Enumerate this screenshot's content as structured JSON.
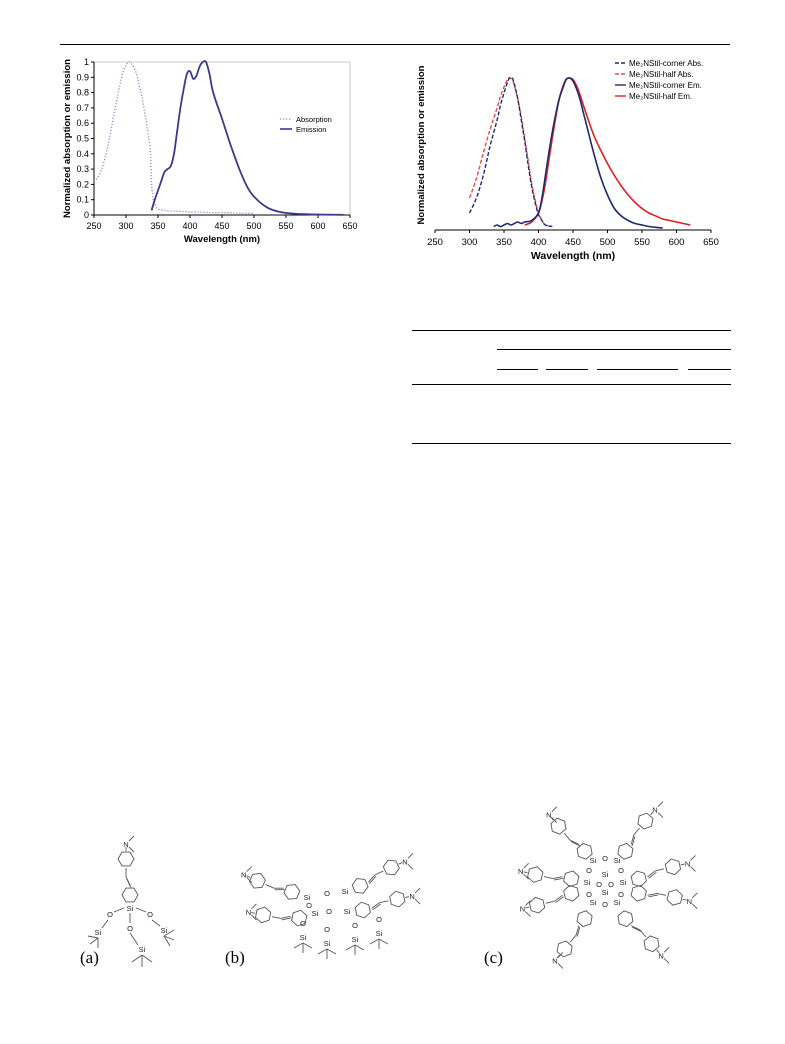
{
  "chart_data": [
    {
      "type": "line",
      "title": "",
      "xlabel": "Wavelength (nm)",
      "ylabel": "Normalized absorption or emission",
      "xlim": [
        250,
        650
      ],
      "ylim": [
        0,
        1
      ],
      "xticks": [
        250,
        300,
        350,
        400,
        450,
        500,
        550,
        600,
        650
      ],
      "yticks": [
        0,
        0.1,
        0.2,
        0.3,
        0.4,
        0.5,
        0.6,
        0.7,
        0.8,
        0.9,
        1
      ],
      "legend_position": "right-middle",
      "series": [
        {
          "name": "Absorption",
          "color": "#8a8ac8",
          "style": "dotted",
          "x": [
            250,
            255,
            260,
            265,
            270,
            275,
            280,
            285,
            290,
            295,
            300,
            305,
            310,
            315,
            320,
            325,
            330,
            335,
            338,
            340,
            343,
            346,
            350,
            360,
            380,
            400,
            420,
            440,
            460,
            480,
            500
          ],
          "y": [
            0.22,
            0.24,
            0.28,
            0.34,
            0.42,
            0.52,
            0.63,
            0.74,
            0.84,
            0.93,
            0.98,
            1.0,
            0.98,
            0.94,
            0.86,
            0.77,
            0.65,
            0.52,
            0.42,
            0.2,
            0.1,
            0.06,
            0.04,
            0.03,
            0.025,
            0.02,
            0.018,
            0.015,
            0.015,
            0.012,
            0.01
          ]
        },
        {
          "name": "Emission",
          "color": "#3a3a8a",
          "style": "solid",
          "x": [
            340,
            345,
            350,
            355,
            360,
            365,
            370,
            375,
            380,
            385,
            390,
            395,
            400,
            405,
            410,
            415,
            420,
            425,
            430,
            435,
            440,
            445,
            450,
            460,
            470,
            480,
            490,
            500,
            520,
            540,
            560,
            580,
            600,
            620,
            640
          ],
          "y": [
            0.03,
            0.1,
            0.16,
            0.22,
            0.28,
            0.3,
            0.32,
            0.4,
            0.55,
            0.7,
            0.82,
            0.92,
            0.94,
            0.89,
            0.91,
            0.97,
            1.0,
            1.0,
            0.93,
            0.82,
            0.75,
            0.69,
            0.63,
            0.5,
            0.38,
            0.27,
            0.18,
            0.12,
            0.05,
            0.02,
            0.01,
            0.005,
            0.003,
            0.002,
            0.001
          ]
        }
      ]
    },
    {
      "type": "line",
      "title": "",
      "xlabel": "Wavelength (nm)",
      "ylabel": "Normalized absorption or emission",
      "xlim": [
        250,
        650
      ],
      "ylim": [
        0,
        1
      ],
      "xticks": [
        250,
        300,
        350,
        400,
        450,
        500,
        550,
        600,
        650
      ],
      "legend_position": "top-right",
      "series": [
        {
          "name": "Me₂NStil-corner Abs.",
          "color": "#1e2a6e",
          "style": "dashed",
          "x": [
            300,
            310,
            320,
            330,
            340,
            345,
            350,
            355,
            358,
            362,
            365,
            370,
            375,
            380,
            385,
            390,
            395,
            400,
            405,
            410,
            420
          ],
          "y": [
            0.1,
            0.2,
            0.35,
            0.55,
            0.72,
            0.82,
            0.9,
            0.97,
            1.0,
            1.0,
            0.96,
            0.86,
            0.72,
            0.58,
            0.42,
            0.28,
            0.17,
            0.09,
            0.05,
            0.02,
            0.01
          ]
        },
        {
          "name": "Me₂NStil-half Abs.",
          "color": "#e05050",
          "style": "dashed",
          "x": [
            300,
            310,
            320,
            330,
            340,
            345,
            350,
            355,
            358,
            362,
            365,
            370,
            375,
            380,
            385,
            390,
            395,
            400,
            405,
            410,
            420
          ],
          "y": [
            0.2,
            0.33,
            0.5,
            0.66,
            0.8,
            0.88,
            0.94,
            0.99,
            1.0,
            0.99,
            0.95,
            0.86,
            0.74,
            0.6,
            0.45,
            0.3,
            0.19,
            0.1,
            0.05,
            0.02,
            0.01
          ]
        },
        {
          "name": "Me₂NStil-corner Em.",
          "color": "#1e2a6e",
          "style": "solid",
          "x": [
            335,
            340,
            345,
            350,
            355,
            360,
            365,
            370,
            375,
            380,
            390,
            400,
            405,
            410,
            415,
            420,
            425,
            430,
            435,
            440,
            445,
            450,
            455,
            460,
            465,
            470,
            480,
            490,
            500,
            510,
            520,
            530,
            540,
            550,
            560,
            570,
            580
          ],
          "y": [
            0.01,
            0.02,
            0.01,
            0.02,
            0.03,
            0.02,
            0.03,
            0.04,
            0.03,
            0.04,
            0.05,
            0.1,
            0.2,
            0.35,
            0.5,
            0.64,
            0.76,
            0.86,
            0.93,
            0.99,
            1.0,
            0.98,
            0.93,
            0.86,
            0.77,
            0.68,
            0.5,
            0.34,
            0.22,
            0.13,
            0.08,
            0.05,
            0.03,
            0.02,
            0.01,
            0.005,
            0.0
          ]
        },
        {
          "name": "Me₂NStil-half Em.",
          "color": "#e02020",
          "style": "solid",
          "x": [
            380,
            390,
            400,
            405,
            410,
            415,
            420,
            425,
            430,
            435,
            440,
            445,
            450,
            455,
            460,
            465,
            470,
            480,
            490,
            500,
            510,
            520,
            530,
            540,
            550,
            560,
            570,
            580,
            590,
            600,
            610,
            620
          ],
          "y": [
            0.02,
            0.04,
            0.1,
            0.18,
            0.3,
            0.45,
            0.6,
            0.74,
            0.86,
            0.94,
            0.99,
            1.0,
            0.99,
            0.95,
            0.89,
            0.82,
            0.75,
            0.62,
            0.52,
            0.43,
            0.35,
            0.28,
            0.22,
            0.17,
            0.13,
            0.1,
            0.08,
            0.06,
            0.05,
            0.04,
            0.03,
            0.02
          ]
        }
      ]
    }
  ],
  "figure_panels": {
    "a": "(a)",
    "b": "(b)",
    "c": "(c)"
  },
  "atom_labels": {
    "si": "Si",
    "o": "O",
    "n": "N"
  }
}
